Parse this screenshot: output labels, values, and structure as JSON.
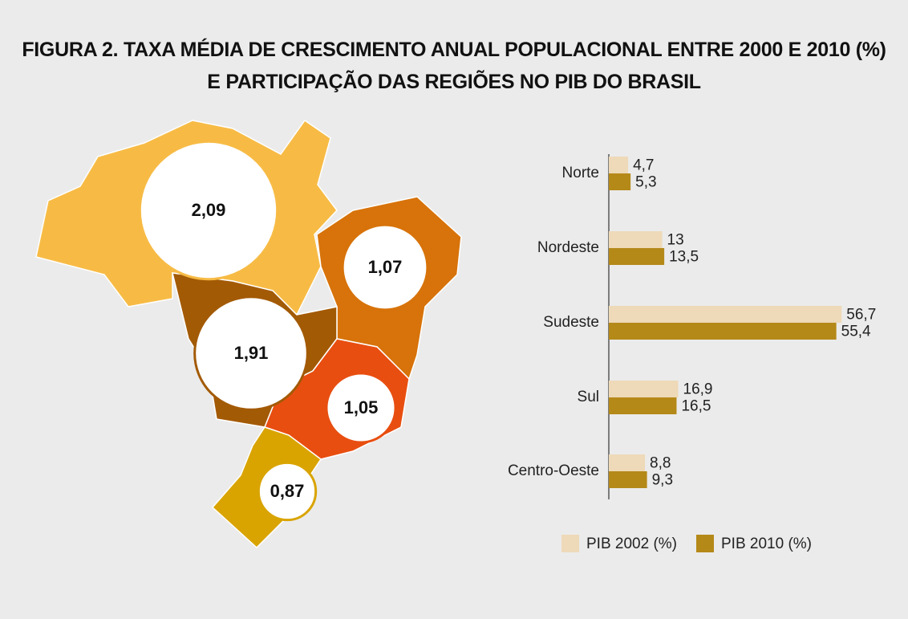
{
  "title": "FIGURA 2. TAXA MÉDIA DE CRESCIMENTO ANUAL POPULACIONAL ENTRE 2000 E 2010 (%) E PARTICIPAÇÃO DAS REGIÕES NO PIB DO BRASIL",
  "chart_data": [
    {
      "type": "bubble-map",
      "values": [
        2.09,
        1.07,
        1.91,
        1.05,
        0.87
      ],
      "value_labels": [
        "2,09",
        "1,07",
        "1,91",
        "1,05",
        "0,87"
      ],
      "colors": [
        "#f7bb45",
        "#d7730a",
        "#a35a05",
        "#e84e10",
        "#d9a400"
      ]
    },
    {
      "type": "grouped-hbar",
      "categories": [
        "Norte",
        "Nordeste",
        "Sudeste",
        "Sul",
        "Centro-Oeste"
      ],
      "series": [
        {
          "name": "PIB 2002 (%)",
          "color": "#eed9b8",
          "values": [
            4.7,
            13,
            56.7,
            16.9,
            8.8
          ],
          "value_labels": [
            "4,7",
            "13",
            "56,7",
            "16,9",
            "8,8"
          ]
        },
        {
          "name": "PIB 2010 (%)",
          "color": "#b48918",
          "values": [
            5.3,
            13.5,
            55.4,
            16.5,
            9.3
          ],
          "value_labels": [
            "5,3",
            "13,5",
            "55,4",
            "16,5",
            "9,3"
          ]
        }
      ]
    }
  ]
}
